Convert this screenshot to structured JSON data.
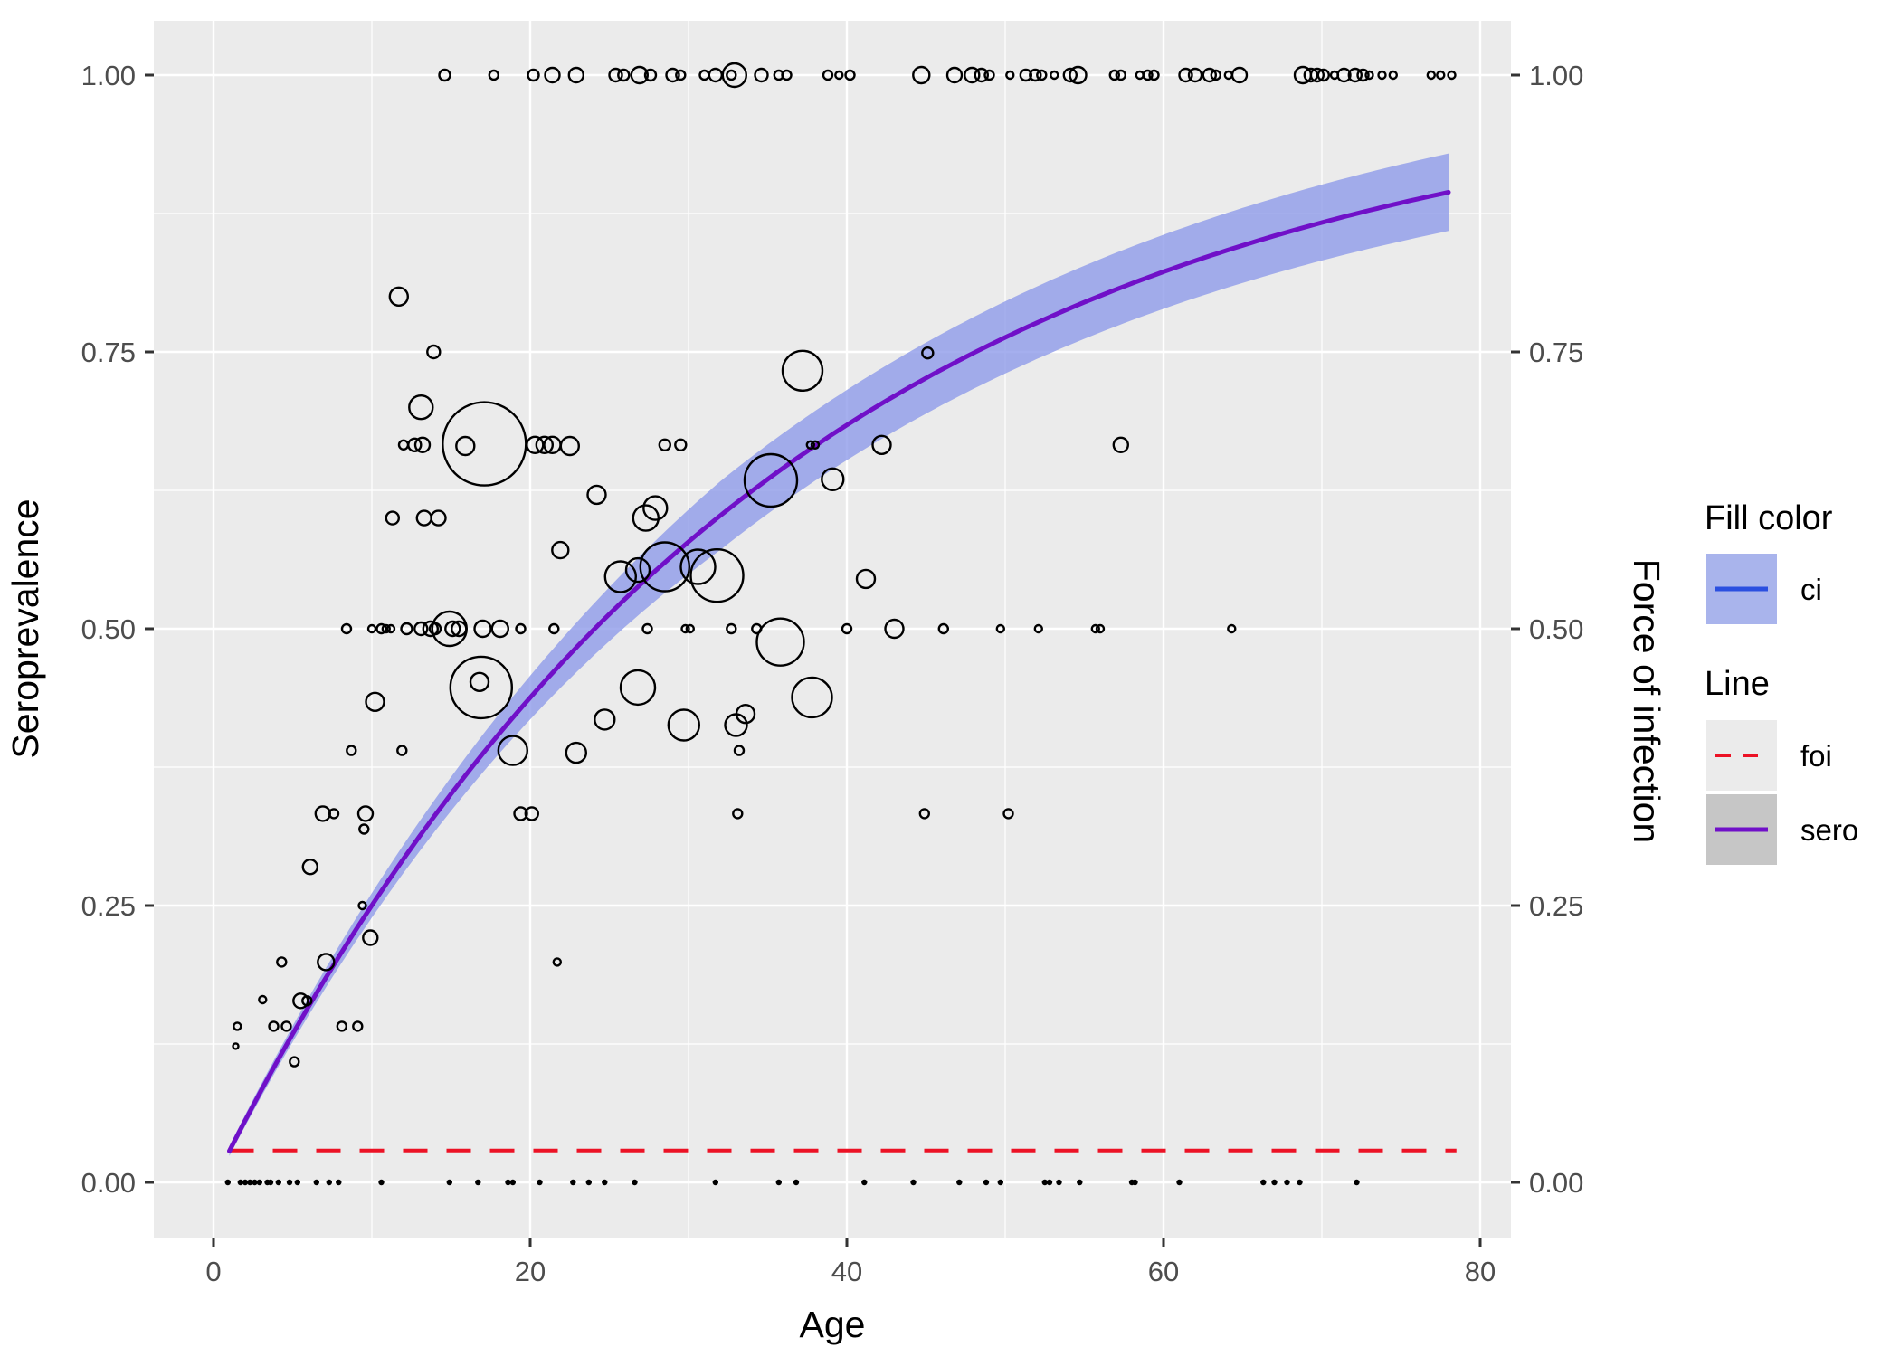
{
  "figure": {
    "background": "#ffffff",
    "panel_background": "#ebebeb",
    "grid_color": "#ffffff"
  },
  "axes": {
    "x_label": "Age",
    "y_left_label": "Seroprevalence",
    "y_right_label": "Force of infection",
    "x_tick_labels": [
      "0",
      "20",
      "40",
      "60",
      "80"
    ],
    "y_tick_labels": [
      "0.00",
      "0.25",
      "0.50",
      "0.75",
      "1.00"
    ]
  },
  "legend": {
    "fill_title": "Fill color",
    "fill_items": [
      {
        "label": "ci",
        "band_color": "#a9b4ec",
        "line_color": "#2b4fe0"
      }
    ],
    "line_title": "Line",
    "line_items": [
      {
        "label": "foi",
        "key_bg": "#ebebeb",
        "line_color": "#ec1225",
        "dashed": true
      },
      {
        "label": "sero",
        "key_bg": "#c6c6c6",
        "line_color": "#7010c8",
        "dashed": false
      }
    ]
  },
  "chart_data": {
    "type": "scatter",
    "title": "",
    "xlabel": "Age",
    "ylabel_left": "Seroprevalence",
    "ylabel_right": "Force of infection",
    "x_axis": {
      "major_ticks": [
        0,
        20,
        40,
        60,
        80
      ],
      "minor_ticks": [
        10,
        30,
        50,
        70
      ],
      "range": [
        -3.77,
        81.94
      ]
    },
    "y_axis": {
      "major_ticks": [
        0,
        0.25,
        0.5,
        0.75,
        1.0
      ],
      "tick_labels": [
        "0.00",
        "0.25",
        "0.50",
        "0.75",
        "1.00"
      ],
      "minor_ticks": [
        0.125,
        0.375,
        0.625,
        0.875
      ],
      "range": [
        -0.05,
        1.049
      ]
    },
    "grid": true,
    "legend_position": "right",
    "foi_line": {
      "legend": "foi",
      "value": 0.0288,
      "age_start": 1,
      "age_end": 78.5,
      "color": "#ec1225",
      "style": "dashed",
      "width": 4
    },
    "sero_curve": {
      "legend": "sero",
      "model": "seroprevalence = 1 - exp(-foi * age)",
      "foi": 0.0288,
      "age_start": 1,
      "age_end": 78,
      "color": "#7010c8",
      "width": 5
    },
    "ci_band": {
      "legend": "ci",
      "fill": "rgba(140,153,233,0.78)",
      "half_width_value_at_age": {
        "1": 0.004,
        "10": 0.013,
        "30": 0.029,
        "78": 0.031
      }
    },
    "bubbles_note": "open circles: seroprevalence proportion by age, radius = sample size; format [age, seroprevalence, radius_px]",
    "bubbles": [
      [
        11.7,
        0.8,
        10
      ],
      [
        13.9,
        0.75,
        7
      ],
      [
        45.1,
        0.749,
        6
      ],
      [
        37.2,
        0.733,
        22
      ],
      [
        13.1,
        0.7,
        13
      ],
      [
        12.0,
        0.666,
        5
      ],
      [
        12.7,
        0.666,
        7
      ],
      [
        13.2,
        0.666,
        8
      ],
      [
        15.9,
        0.665,
        10
      ],
      [
        17.1,
        0.667,
        46
      ],
      [
        20.3,
        0.666,
        9
      ],
      [
        20.9,
        0.666,
        9
      ],
      [
        21.4,
        0.666,
        9
      ],
      [
        22.5,
        0.665,
        10
      ],
      [
        28.5,
        0.666,
        6
      ],
      [
        29.5,
        0.666,
        6
      ],
      [
        37.7,
        0.666,
        4
      ],
      [
        38.0,
        0.666,
        4
      ],
      [
        42.2,
        0.666,
        10
      ],
      [
        57.3,
        0.666,
        8
      ],
      [
        24.2,
        0.621,
        10
      ],
      [
        35.2,
        0.634,
        29
      ],
      [
        39.1,
        0.635,
        12
      ],
      [
        27.9,
        0.609,
        13
      ],
      [
        11.3,
        0.6,
        7
      ],
      [
        13.3,
        0.6,
        8
      ],
      [
        14.2,
        0.6,
        8
      ],
      [
        27.3,
        0.6,
        14
      ],
      [
        21.9,
        0.571,
        9
      ],
      [
        25.7,
        0.547,
        17
      ],
      [
        26.8,
        0.553,
        13
      ],
      [
        28.5,
        0.556,
        27
      ],
      [
        30.6,
        0.556,
        19
      ],
      [
        31.8,
        0.548,
        29
      ],
      [
        41.2,
        0.545,
        10
      ],
      [
        8.4,
        0.5,
        5
      ],
      [
        10.0,
        0.5,
        4
      ],
      [
        10.6,
        0.5,
        5
      ],
      [
        10.9,
        0.5,
        4
      ],
      [
        11.2,
        0.5,
        4
      ],
      [
        12.2,
        0.5,
        6
      ],
      [
        13.1,
        0.5,
        7
      ],
      [
        13.7,
        0.5,
        8
      ],
      [
        14.0,
        0.5,
        6
      ],
      [
        14.9,
        0.5,
        19
      ],
      [
        15.1,
        0.5,
        8
      ],
      [
        15.5,
        0.5,
        8
      ],
      [
        17.0,
        0.5,
        9
      ],
      [
        18.1,
        0.5,
        9
      ],
      [
        19.4,
        0.5,
        5
      ],
      [
        21.5,
        0.5,
        5
      ],
      [
        27.4,
        0.5,
        5
      ],
      [
        29.8,
        0.5,
        4
      ],
      [
        30.1,
        0.5,
        4
      ],
      [
        32.7,
        0.5,
        5
      ],
      [
        34.3,
        0.5,
        5
      ],
      [
        40.0,
        0.5,
        5
      ],
      [
        43.0,
        0.5,
        10
      ],
      [
        46.1,
        0.5,
        5
      ],
      [
        49.7,
        0.5,
        4
      ],
      [
        52.1,
        0.5,
        4
      ],
      [
        55.7,
        0.5,
        4
      ],
      [
        56.0,
        0.5,
        4
      ],
      [
        64.3,
        0.5,
        4
      ],
      [
        35.8,
        0.488,
        26
      ],
      [
        16.9,
        0.447,
        34
      ],
      [
        16.8,
        0.452,
        10
      ],
      [
        26.8,
        0.447,
        19
      ],
      [
        37.8,
        0.438,
        22
      ],
      [
        10.2,
        0.434,
        10
      ],
      [
        24.7,
        0.418,
        11
      ],
      [
        33.6,
        0.423,
        10
      ],
      [
        29.7,
        0.413,
        17
      ],
      [
        33.0,
        0.413,
        12
      ],
      [
        8.7,
        0.39,
        5
      ],
      [
        11.9,
        0.39,
        5
      ],
      [
        18.9,
        0.39,
        16
      ],
      [
        22.9,
        0.388,
        11
      ],
      [
        33.2,
        0.39,
        5
      ],
      [
        6.9,
        0.333,
        8
      ],
      [
        7.6,
        0.333,
        5
      ],
      [
        9.6,
        0.333,
        8
      ],
      [
        19.4,
        0.333,
        7
      ],
      [
        20.1,
        0.333,
        7
      ],
      [
        33.1,
        0.333,
        5
      ],
      [
        44.9,
        0.333,
        5
      ],
      [
        50.2,
        0.333,
        5
      ],
      [
        9.5,
        0.319,
        5
      ],
      [
        6.1,
        0.285,
        8
      ],
      [
        9.4,
        0.25,
        4
      ],
      [
        9.9,
        0.221,
        8
      ],
      [
        4.3,
        0.199,
        5
      ],
      [
        7.1,
        0.199,
        9
      ],
      [
        21.7,
        0.199,
        4
      ],
      [
        3.1,
        0.165,
        4
      ],
      [
        5.5,
        0.164,
        8
      ],
      [
        5.9,
        0.164,
        5
      ],
      [
        1.5,
        0.141,
        4
      ],
      [
        3.8,
        0.141,
        5
      ],
      [
        4.6,
        0.141,
        5
      ],
      [
        8.1,
        0.141,
        5
      ],
      [
        9.1,
        0.141,
        5
      ],
      [
        1.4,
        0.123,
        3
      ],
      [
        5.1,
        0.109,
        5
      ]
    ],
    "points_at_one_note": "open circles on the seroprevalence=1.00 line; format [age, radius_px]",
    "points_at_one": [
      [
        14.6,
        6
      ],
      [
        17.7,
        5
      ],
      [
        20.2,
        6
      ],
      [
        21.4,
        8
      ],
      [
        22.9,
        8
      ],
      [
        25.4,
        7
      ],
      [
        25.9,
        6
      ],
      [
        26.9,
        9
      ],
      [
        27.6,
        6
      ],
      [
        29.0,
        7
      ],
      [
        29.5,
        5
      ],
      [
        31.0,
        5
      ],
      [
        31.7,
        7
      ],
      [
        32.9,
        13
      ],
      [
        32.7,
        5
      ],
      [
        34.6,
        7
      ],
      [
        35.7,
        5
      ],
      [
        36.2,
        5
      ],
      [
        38.8,
        5
      ],
      [
        39.5,
        4
      ],
      [
        40.2,
        5
      ],
      [
        44.7,
        9
      ],
      [
        46.8,
        8
      ],
      [
        47.9,
        8
      ],
      [
        48.5,
        7
      ],
      [
        49.0,
        5
      ],
      [
        50.3,
        4
      ],
      [
        51.3,
        6
      ],
      [
        51.9,
        6
      ],
      [
        52.3,
        5
      ],
      [
        53.1,
        4
      ],
      [
        54.1,
        7
      ],
      [
        54.6,
        9
      ],
      [
        56.9,
        5
      ],
      [
        57.3,
        5
      ],
      [
        58.5,
        4
      ],
      [
        59.0,
        5
      ],
      [
        59.4,
        5
      ],
      [
        61.4,
        7
      ],
      [
        62.0,
        7
      ],
      [
        62.9,
        7
      ],
      [
        63.3,
        5
      ],
      [
        64.1,
        4
      ],
      [
        64.8,
        8
      ],
      [
        68.8,
        9
      ],
      [
        69.3,
        7
      ],
      [
        69.7,
        7
      ],
      [
        70.1,
        6
      ],
      [
        70.8,
        4
      ],
      [
        71.4,
        7
      ],
      [
        72.1,
        7
      ],
      [
        72.6,
        6
      ],
      [
        73.0,
        4
      ],
      [
        73.8,
        4
      ],
      [
        74.5,
        4
      ],
      [
        76.9,
        4
      ],
      [
        77.5,
        4
      ],
      [
        78.2,
        4
      ]
    ],
    "points_at_zero_note": "small filled dots on the seroprevalence=0.00 line; ages",
    "points_at_zero": [
      0.9,
      1.7,
      2.0,
      2.3,
      2.6,
      2.9,
      3.4,
      3.6,
      4.1,
      4.8,
      5.3,
      6.5,
      7.3,
      7.9,
      10.6,
      14.9,
      16.7,
      18.6,
      18.9,
      20.6,
      22.7,
      23.7,
      24.7,
      26.6,
      31.7,
      35.7,
      36.8,
      41.1,
      44.2,
      47.1,
      48.8,
      49.7,
      52.5,
      52.8,
      53.4,
      54.7,
      58.0,
      58.2,
      61.0,
      66.3,
      67.0,
      67.8,
      68.6,
      72.2
    ]
  }
}
